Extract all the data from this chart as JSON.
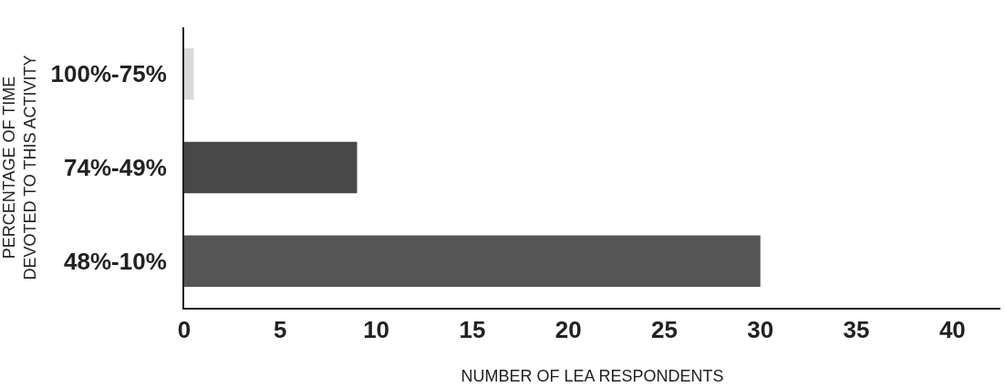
{
  "chart_data": {
    "type": "bar",
    "orientation": "horizontal",
    "categories": [
      "100%-75%",
      "74%-49%",
      "48%-10%"
    ],
    "values": [
      0.5,
      9,
      30
    ],
    "colors": [
      "#d9d9d9",
      "#484848",
      "#555555"
    ],
    "xlim": [
      0,
      42.5
    ],
    "xticks": [
      0,
      5,
      10,
      15,
      20,
      25,
      30,
      35,
      40
    ],
    "xlabel": "NUMBER OF LEA RESPONDENTS",
    "ylabel": "PERCENTAGE OF TIME\nDEVOTED TO THIS ACTIVITY",
    "legend": false
  }
}
